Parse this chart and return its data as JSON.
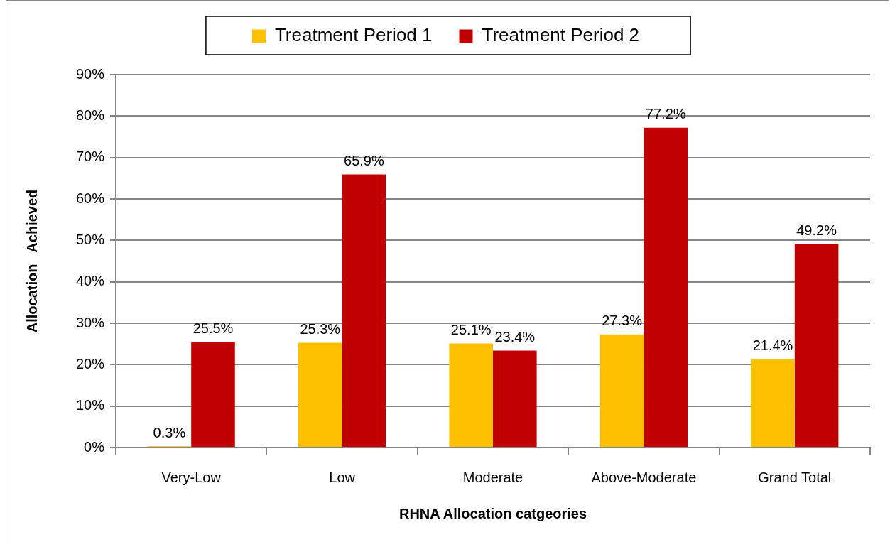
{
  "chart_data": {
    "type": "bar",
    "xlabel": "RHNA Allocation catgeories",
    "ylabel": "Allocation   Achieved",
    "categories": [
      "Very-Low",
      "Low",
      "Moderate",
      "Above-Moderate",
      "Grand Total"
    ],
    "series": [
      {
        "name": "Treatment Period 1",
        "color": "#ffc000",
        "values": [
          0.3,
          25.3,
          25.1,
          27.3,
          21.4
        ],
        "value_labels": [
          "0.3%",
          "25.3%",
          "25.1%",
          "27.3%",
          "21.4%"
        ]
      },
      {
        "name": "Treatment Period 2",
        "color": "#c00000",
        "values": [
          25.5,
          65.9,
          23.4,
          77.2,
          49.2
        ],
        "value_labels": [
          "25.5%",
          "65.9%",
          "23.4%",
          "77.2%",
          "49.2%"
        ]
      }
    ],
    "ylim": [
      0,
      90
    ],
    "yticks": [
      {
        "value": 0,
        "label": "0%"
      },
      {
        "value": 10,
        "label": "10%"
      },
      {
        "value": 20,
        "label": "20%"
      },
      {
        "value": 30,
        "label": "30%"
      },
      {
        "value": 40,
        "label": "40%"
      },
      {
        "value": 50,
        "label": "50%"
      },
      {
        "value": 60,
        "label": "60%"
      },
      {
        "value": 70,
        "label": "70%"
      },
      {
        "value": 80,
        "label": "80%"
      },
      {
        "value": 90,
        "label": "90%"
      }
    ],
    "grid": "y",
    "legend": "top"
  }
}
